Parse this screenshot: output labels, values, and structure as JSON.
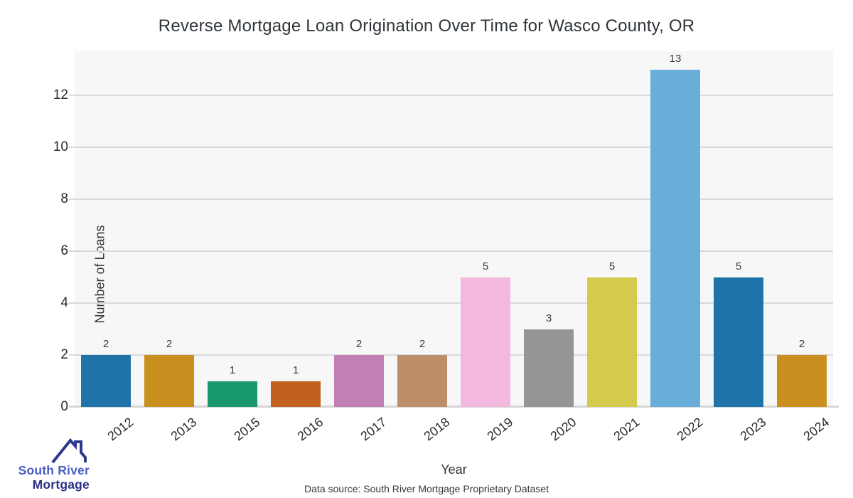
{
  "chart_data": {
    "type": "bar",
    "title": "Reverse Mortgage Loan Origination Over Time for Wasco County, OR",
    "xlabel": "Year",
    "ylabel": "Number of Loans",
    "categories": [
      "2012",
      "2013",
      "2015",
      "2016",
      "2017",
      "2018",
      "2019",
      "2020",
      "2021",
      "2022",
      "2023",
      "2024"
    ],
    "values": [
      2,
      2,
      1,
      1,
      2,
      2,
      5,
      3,
      5,
      13,
      5,
      2
    ],
    "bar_colors": [
      "#1e73a8",
      "#c9901f",
      "#18976f",
      "#c2611e",
      "#c17fb5",
      "#bd8e6a",
      "#f2b8de",
      "#959595",
      "#d4cb4d",
      "#68aed8",
      "#1e73a8",
      "#c9901f"
    ],
    "value_labels": [
      "2",
      "2",
      "1",
      "1",
      "2",
      "2",
      "5",
      "3",
      "5",
      "13",
      "5",
      "2"
    ],
    "yticks": [
      0,
      2,
      4,
      6,
      8,
      10,
      12
    ],
    "ylim": [
      0,
      13.7
    ],
    "grid": "horizontal",
    "legend": "none",
    "plot_background": "#f7f7f7",
    "grid_color": "#d9d9d9",
    "text_color": "#2b2b2b"
  },
  "footer": {
    "data_source": "Data source: South River Mortgage Proprietary Dataset"
  },
  "logo": {
    "line1": "South River",
    "line2": "Mortgage",
    "line1_color": "#4a5ec2",
    "line2_color": "#2a3184",
    "roof_color": "#2c3a8c"
  }
}
